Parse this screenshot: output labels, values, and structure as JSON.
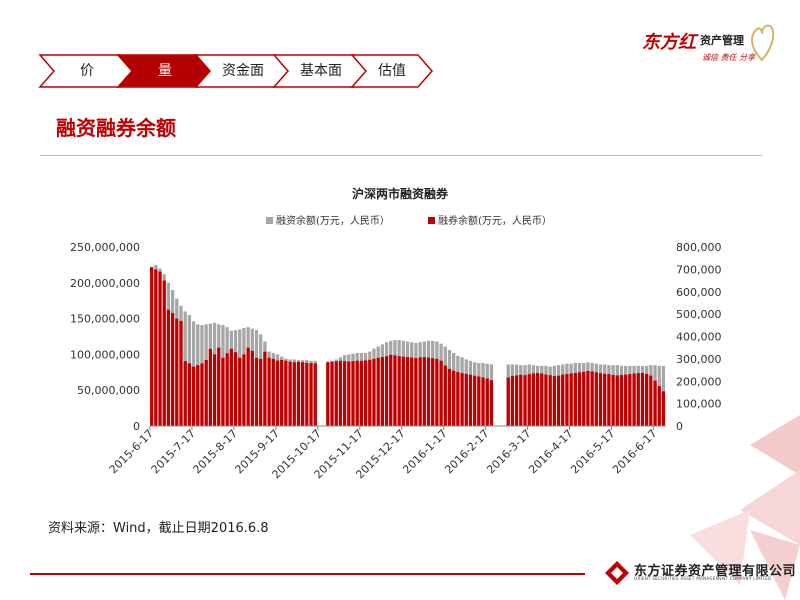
{
  "header": {
    "logo_text": "东方红",
    "logo_sub": "资产管理",
    "logo_tagline": "诚信 责任 分享"
  },
  "nav": {
    "tabs": [
      {
        "label": "价",
        "active": false
      },
      {
        "label": "量",
        "active": true
      },
      {
        "label": "资金面",
        "active": false
      },
      {
        "label": "基本面",
        "active": false
      },
      {
        "label": "估值",
        "active": false
      }
    ]
  },
  "page": {
    "title": "融资融券余额",
    "source_note": "资料来源：Wind，截止日期2016.6.8"
  },
  "footer": {
    "brand_cn": "东方证券资产管理有限公司",
    "brand_en": "ORIENT SECURITIES ASSET MANAGEMENT COMPANY LIMITED"
  },
  "colors": {
    "accent": "#c00000",
    "margin_balance": "#a6a6a6",
    "short_balance": "#c00000"
  },
  "chart_data": {
    "type": "bar",
    "title": "沪深两市融资融券",
    "legend_position": "top",
    "grid": false,
    "series": [
      {
        "name": "融资余额(万元，人民币）",
        "axis": "left",
        "color": "#a6a6a6",
        "values": [
          222000000,
          225000000,
          220000000,
          212000000,
          200000000,
          190000000,
          178000000,
          168000000,
          160000000,
          155000000,
          146000000,
          142000000,
          141000000,
          142000000,
          143000000,
          144000000,
          142000000,
          141000000,
          138000000,
          133000000,
          134000000,
          135000000,
          137000000,
          138000000,
          136000000,
          134000000,
          128000000,
          118000000,
          104000000,
          102000000,
          100000000,
          97000000,
          94000000,
          93000000,
          93000000,
          92000000,
          92000000,
          92000000,
          91000000,
          91000000,
          null,
          null,
          90000000,
          91000000,
          93000000,
          96000000,
          99000000,
          100000000,
          101000000,
          102000000,
          102000000,
          102000000,
          104000000,
          108000000,
          111000000,
          114000000,
          117000000,
          119000000,
          120000000,
          120000000,
          119000000,
          118000000,
          117000000,
          116000000,
          117000000,
          118000000,
          119000000,
          119000000,
          118000000,
          115000000,
          111000000,
          106000000,
          102000000,
          98000000,
          96000000,
          93000000,
          91000000,
          89000000,
          88000000,
          88000000,
          87000000,
          86000000,
          null,
          null,
          null,
          86000000,
          86000000,
          86000000,
          85000000,
          85000000,
          86000000,
          85000000,
          84000000,
          84000000,
          84000000,
          83000000,
          84000000,
          85000000,
          86000000,
          87000000,
          87000000,
          88000000,
          88000000,
          88000000,
          89000000,
          88000000,
          87000000,
          86000000,
          86000000,
          85000000,
          85000000,
          85000000,
          84000000,
          84000000,
          84000000,
          84000000,
          84000000,
          84000000,
          84000000,
          85000000,
          85000000,
          84000000,
          84000000
        ]
      },
      {
        "name": "融券余额(万元，人民币）",
        "axis": "right",
        "color": "#c00000",
        "values": [
          710000,
          700000,
          690000,
          650000,
          520000,
          505000,
          480000,
          470000,
          290000,
          280000,
          265000,
          272000,
          280000,
          295000,
          345000,
          320000,
          350000,
          305000,
          325000,
          345000,
          330000,
          305000,
          320000,
          350000,
          336000,
          305000,
          300000,
          332000,
          305000,
          300000,
          292000,
          295000,
          292000,
          287000,
          285000,
          287000,
          285000,
          282000,
          281000,
          280000,
          null,
          null,
          285000,
          287000,
          289000,
          291000,
          290000,
          288000,
          290000,
          292000,
          291000,
          293000,
          296000,
          300000,
          305000,
          308000,
          312000,
          318000,
          316000,
          312000,
          310000,
          308000,
          306000,
          304000,
          307000,
          308000,
          306000,
          303000,
          300000,
          292000,
          270000,
          255000,
          247000,
          241000,
          236000,
          233000,
          229000,
          225000,
          221000,
          217000,
          212000,
          205000,
          null,
          null,
          null,
          217000,
          223000,
          226000,
          229000,
          227000,
          232000,
          235000,
          237000,
          235000,
          230000,
          227000,
          223000,
          225000,
          230000,
          232000,
          235000,
          237000,
          240000,
          242000,
          246000,
          244000,
          240000,
          236000,
          233000,
          232000,
          228000,
          226000,
          228000,
          230000,
          232000,
          235000,
          236000,
          237000,
          233000,
          225000,
          203000,
          178000,
          155000
        ]
      }
    ],
    "y_left": {
      "min": 0,
      "max": 250000000,
      "ticks": [
        "0",
        "50,000,000",
        "100,000,000",
        "150,000,000",
        "200,000,000",
        "250,000,000"
      ]
    },
    "y_right": {
      "min": 0,
      "max": 800000,
      "ticks": [
        "0",
        "100,000",
        "200,000",
        "300,000",
        "400,000",
        "500,000",
        "600,000",
        "700,000",
        "800,000"
      ]
    },
    "x_start": "2015-6-17",
    "x_ticks": [
      {
        "label": "2015-6-17",
        "bar_index": 0
      },
      {
        "label": "2015-7-17",
        "bar_index": 10
      },
      {
        "label": "2015-8-17",
        "bar_index": 20
      },
      {
        "label": "2015-9-17",
        "bar_index": 30
      },
      {
        "label": "2015-10-17",
        "bar_index": 40
      },
      {
        "label": "2015-11-17",
        "bar_index": 50
      },
      {
        "label": "2015-12-17",
        "bar_index": 60
      },
      {
        "label": "2016-1-17",
        "bar_index": 70
      },
      {
        "label": "2016-2-17",
        "bar_index": 80
      },
      {
        "label": "2016-3-17",
        "bar_index": 90
      },
      {
        "label": "2016-4-17",
        "bar_index": 100
      },
      {
        "label": "2016-5-17",
        "bar_index": 110
      },
      {
        "label": "2016-6-17",
        "bar_index": 120
      }
    ]
  }
}
